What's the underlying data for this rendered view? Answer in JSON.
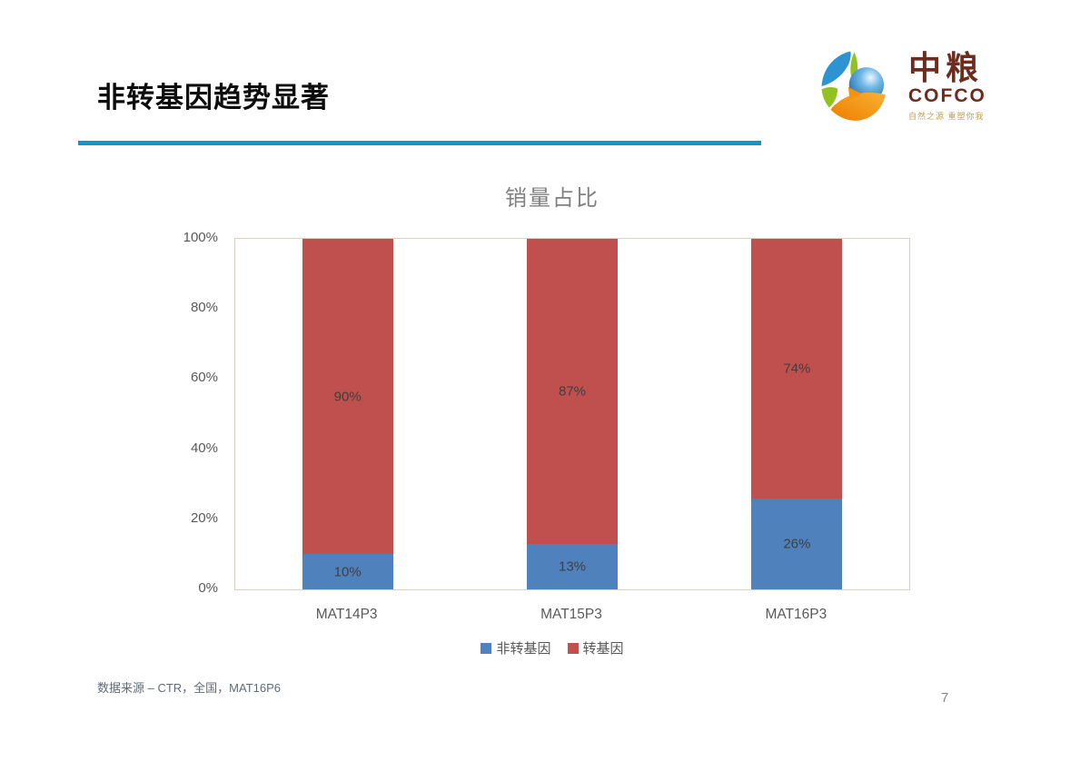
{
  "slide": {
    "title": "非转基因趋势显著",
    "footer": "数据来源 – CTR，全国，MAT16P6",
    "page_number": "7",
    "accent_color": "#1494c8"
  },
  "logo": {
    "zh": "中粮",
    "en": "COFCO",
    "tagline": "自然之源 重塑你我",
    "brand_color": "#6d2c1e"
  },
  "chart_data": {
    "type": "bar",
    "stacked": true,
    "title": "销量占比",
    "categories": [
      "MAT14P3",
      "MAT15P3",
      "MAT16P3"
    ],
    "series": [
      {
        "name": "非转基因",
        "color": "#4f81bd",
        "values": [
          10,
          13,
          26
        ]
      },
      {
        "name": "转基因",
        "color": "#c0504d",
        "values": [
          90,
          87,
          74
        ]
      }
    ],
    "ylim": [
      0,
      100
    ],
    "yticks": [
      "0%",
      "20%",
      "40%",
      "60%",
      "80%",
      "100%"
    ],
    "value_suffix": "%",
    "legend_position": "bottom",
    "grid": false,
    "plot_border_color": "#d8d2c2"
  }
}
